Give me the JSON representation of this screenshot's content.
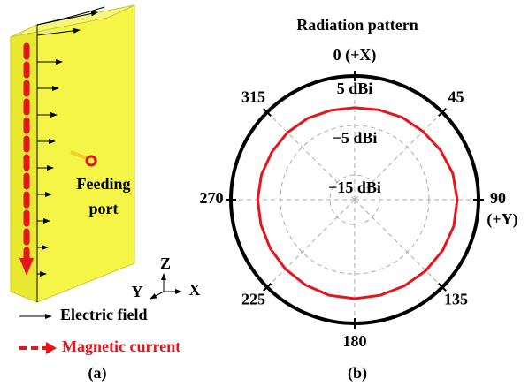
{
  "diagram": {
    "feed_label": [
      "Feeding",
      "port"
    ],
    "axes": [
      "Z",
      "Y",
      "X"
    ],
    "legend": [
      "Electric field",
      "Magnetic current"
    ],
    "caption": "(a)"
  },
  "chart_data": {
    "type": "polar",
    "title": "Radiation pattern",
    "caption": "(b)",
    "theta": [
      0,
      15,
      30,
      45,
      60,
      75,
      90,
      105,
      120,
      135,
      150,
      165,
      180,
      195,
      210,
      225,
      240,
      255,
      270,
      285,
      300,
      315,
      330,
      345
    ],
    "values": [
      -1.4,
      -1.2,
      -0.8,
      -0.5,
      0,
      0.5,
      0.7,
      0.7,
      0.5,
      0.3,
      0.1,
      0,
      0,
      0,
      -0.1,
      -0.2,
      -0.3,
      -0.4,
      -0.4,
      -0.5,
      -0.7,
      -0.8,
      -1.0,
      -1.3
    ],
    "color": "#e8141b",
    "rlim": [
      -20,
      5
    ],
    "rticks": [
      {
        "value": 5,
        "label": "5 dBi"
      },
      {
        "value": -5,
        "label": "−5 dBi"
      },
      {
        "value": -15,
        "label": "−15 dBi"
      }
    ],
    "thetaticks": [
      {
        "value": 0,
        "label": "0 (+X)"
      },
      45,
      {
        "value": 90,
        "label": "90"
      },
      135,
      180,
      225,
      270,
      315
    ],
    "annotation": "(+Y)",
    "grid": true
  }
}
